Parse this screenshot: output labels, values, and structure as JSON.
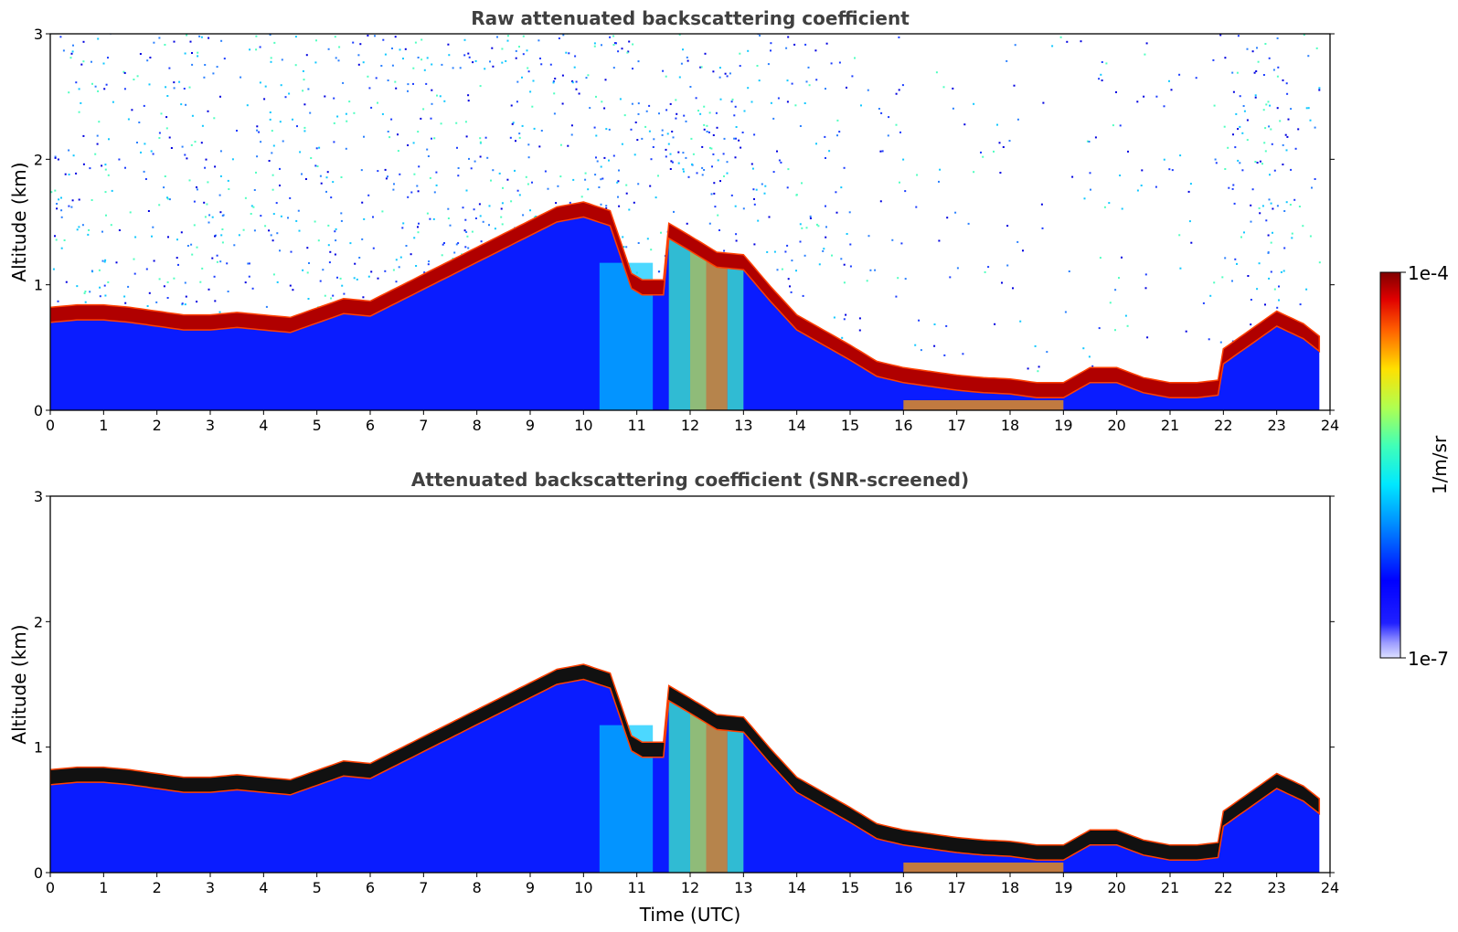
{
  "figure": {
    "xlabel": "Time (UTC)",
    "colorbar": {
      "label": "1/m/sr",
      "max_label": "1e-4",
      "min_label": "1e-7",
      "scale": "log",
      "range": [
        1e-07,
        0.0001
      ],
      "colormap": "jet"
    }
  },
  "chart_data": [
    {
      "type": "heatmap",
      "title": "Raw attenuated backscattering coefficient",
      "xlabel": "",
      "ylabel": "Altitude (km)",
      "xlim": [
        0,
        24
      ],
      "ylim": [
        0,
        3
      ],
      "x_ticks": [
        0,
        1,
        2,
        3,
        4,
        5,
        6,
        7,
        8,
        9,
        10,
        11,
        12,
        13,
        14,
        15,
        16,
        17,
        18,
        19,
        20,
        21,
        22,
        23,
        24
      ],
      "y_ticks": [
        0,
        1,
        2,
        3
      ],
      "data_end_time": 23.8,
      "color_units": "1/m/sr",
      "cloud_base_top_km": {
        "time": [
          0,
          0.5,
          1,
          1.5,
          2,
          2.5,
          3,
          3.5,
          4,
          4.5,
          5.5,
          6,
          9.5,
          10,
          10.5,
          10.9,
          11.1,
          11.5,
          11.6,
          12,
          12.5,
          13,
          13.5,
          14,
          14.5,
          15,
          15.5,
          16,
          16.5,
          17,
          17.5,
          18,
          18.5,
          19,
          19.5,
          20,
          20.5,
          21,
          21.5,
          21.9,
          22,
          22.5,
          23,
          23.5,
          23.8
        ],
        "altitude": [
          0.78,
          0.8,
          0.8,
          0.78,
          0.75,
          0.72,
          0.72,
          0.74,
          0.72,
          0.7,
          0.85,
          0.83,
          1.58,
          1.62,
          1.55,
          1.05,
          1.0,
          1.0,
          1.45,
          1.35,
          1.22,
          1.2,
          0.95,
          0.72,
          0.6,
          0.48,
          0.35,
          0.3,
          0.27,
          0.24,
          0.22,
          0.21,
          0.18,
          0.18,
          0.3,
          0.3,
          0.22,
          0.18,
          0.18,
          0.2,
          0.45,
          0.6,
          0.75,
          0.65,
          0.55
        ]
      }
    },
    {
      "type": "heatmap",
      "title": "Attenuated backscattering coefficient (SNR-screened)",
      "xlabel": "Time (UTC)",
      "ylabel": "Altitude (km)",
      "xlim": [
        0,
        24
      ],
      "ylim": [
        0,
        3
      ],
      "x_ticks": [
        0,
        1,
        2,
        3,
        4,
        5,
        6,
        7,
        8,
        9,
        10,
        11,
        12,
        13,
        14,
        15,
        16,
        17,
        18,
        19,
        20,
        21,
        22,
        23,
        24
      ],
      "y_ticks": [
        0,
        1,
        2,
        3
      ],
      "data_end_time": 23.8,
      "color_units": "1/m/sr",
      "cloud_base_top_km": {
        "time": [
          0,
          0.5,
          1,
          1.5,
          2,
          2.5,
          3,
          3.5,
          4,
          4.5,
          5.5,
          6,
          9.5,
          10,
          10.5,
          10.9,
          11.1,
          11.5,
          11.6,
          12,
          12.5,
          13,
          13.5,
          14,
          14.5,
          15,
          15.5,
          16,
          16.5,
          17,
          17.5,
          18,
          18.5,
          19,
          19.5,
          20,
          20.5,
          21,
          21.5,
          21.9,
          22,
          22.5,
          23,
          23.5,
          23.8
        ],
        "altitude": [
          0.78,
          0.8,
          0.8,
          0.78,
          0.75,
          0.72,
          0.72,
          0.74,
          0.72,
          0.7,
          0.85,
          0.83,
          1.58,
          1.62,
          1.55,
          1.05,
          1.0,
          1.0,
          1.45,
          1.35,
          1.22,
          1.2,
          0.95,
          0.72,
          0.6,
          0.48,
          0.35,
          0.3,
          0.27,
          0.24,
          0.22,
          0.21,
          0.18,
          0.18,
          0.3,
          0.3,
          0.22,
          0.18,
          0.18,
          0.2,
          0.45,
          0.6,
          0.75,
          0.65,
          0.55
        ]
      }
    }
  ]
}
